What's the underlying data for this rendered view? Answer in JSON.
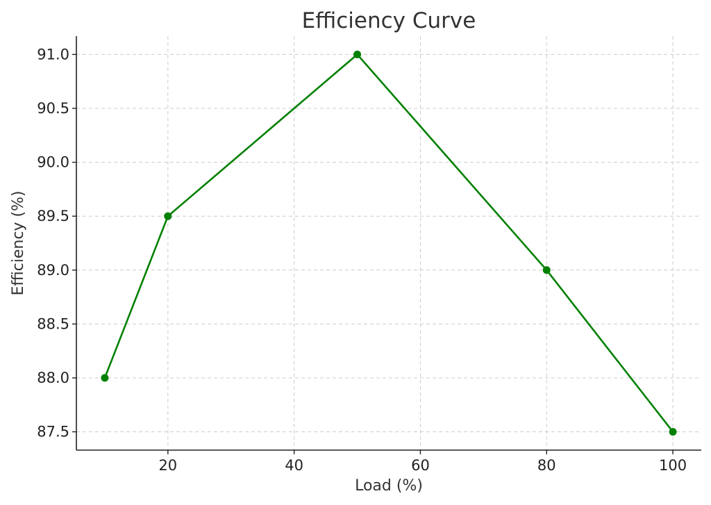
{
  "chart_data": {
    "type": "line",
    "title": "Efficiency Curve",
    "xlabel": "Load (%)",
    "ylabel": "Efficiency (%)",
    "xlim": [
      5.5,
      104.5
    ],
    "ylim": [
      87.33,
      91.17
    ],
    "xticks": [
      20,
      40,
      60,
      80,
      100
    ],
    "yticks": [
      87.5,
      88.0,
      88.5,
      89.0,
      89.5,
      90.0,
      90.5,
      91.0
    ],
    "grid": true,
    "series": [
      {
        "x": [
          10,
          20,
          50,
          80,
          100
        ],
        "y": [
          88.0,
          89.5,
          91.0,
          89.0,
          87.5
        ],
        "color": "#008000",
        "marker": "circle"
      }
    ]
  }
}
